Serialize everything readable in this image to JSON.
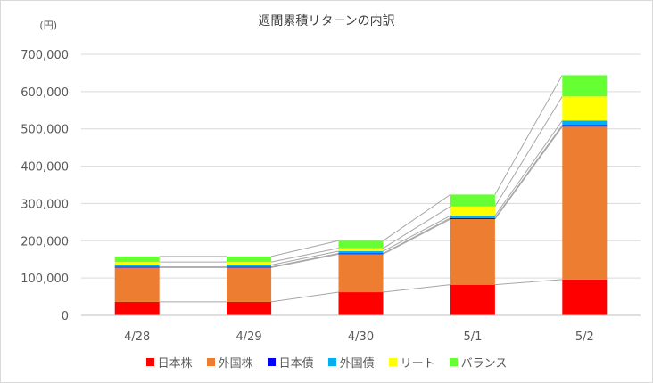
{
  "chart_data": {
    "type": "bar",
    "stacked": true,
    "title": "週間累積リターンの内訳",
    "unit_label": "(円)",
    "categories": [
      "4/28",
      "4/29",
      "4/30",
      "5/1",
      "5/2"
    ],
    "ylim": [
      0,
      700000
    ],
    "yticks": [
      "0",
      "100,000",
      "200,000",
      "300,000",
      "400,000",
      "500,000",
      "600,000",
      "700,000"
    ],
    "ytick_values": [
      0,
      100000,
      200000,
      300000,
      400000,
      500000,
      600000,
      700000
    ],
    "series": [
      {
        "name": "日本株",
        "color": "#ff0000",
        "values": [
          36000,
          36000,
          62000,
          82000,
          96000
        ]
      },
      {
        "name": "外国株",
        "color": "#ed7d31",
        "values": [
          92000,
          92000,
          102000,
          176000,
          410000
        ]
      },
      {
        "name": "日本債",
        "color": "#0000ff",
        "values": [
          2000,
          2000,
          2000,
          3000,
          4000
        ]
      },
      {
        "name": "外国債",
        "color": "#00b0f0",
        "values": [
          5000,
          5000,
          6000,
          6000,
          12000
        ]
      },
      {
        "name": "リート",
        "color": "#ffff00",
        "values": [
          8000,
          8000,
          8000,
          25000,
          65000
        ]
      },
      {
        "name": "バランス",
        "color": "#66ff33",
        "values": [
          15000,
          15000,
          20000,
          32000,
          57000
        ]
      }
    ],
    "grid": true,
    "series_lines": true,
    "legend_position": "bottom"
  }
}
